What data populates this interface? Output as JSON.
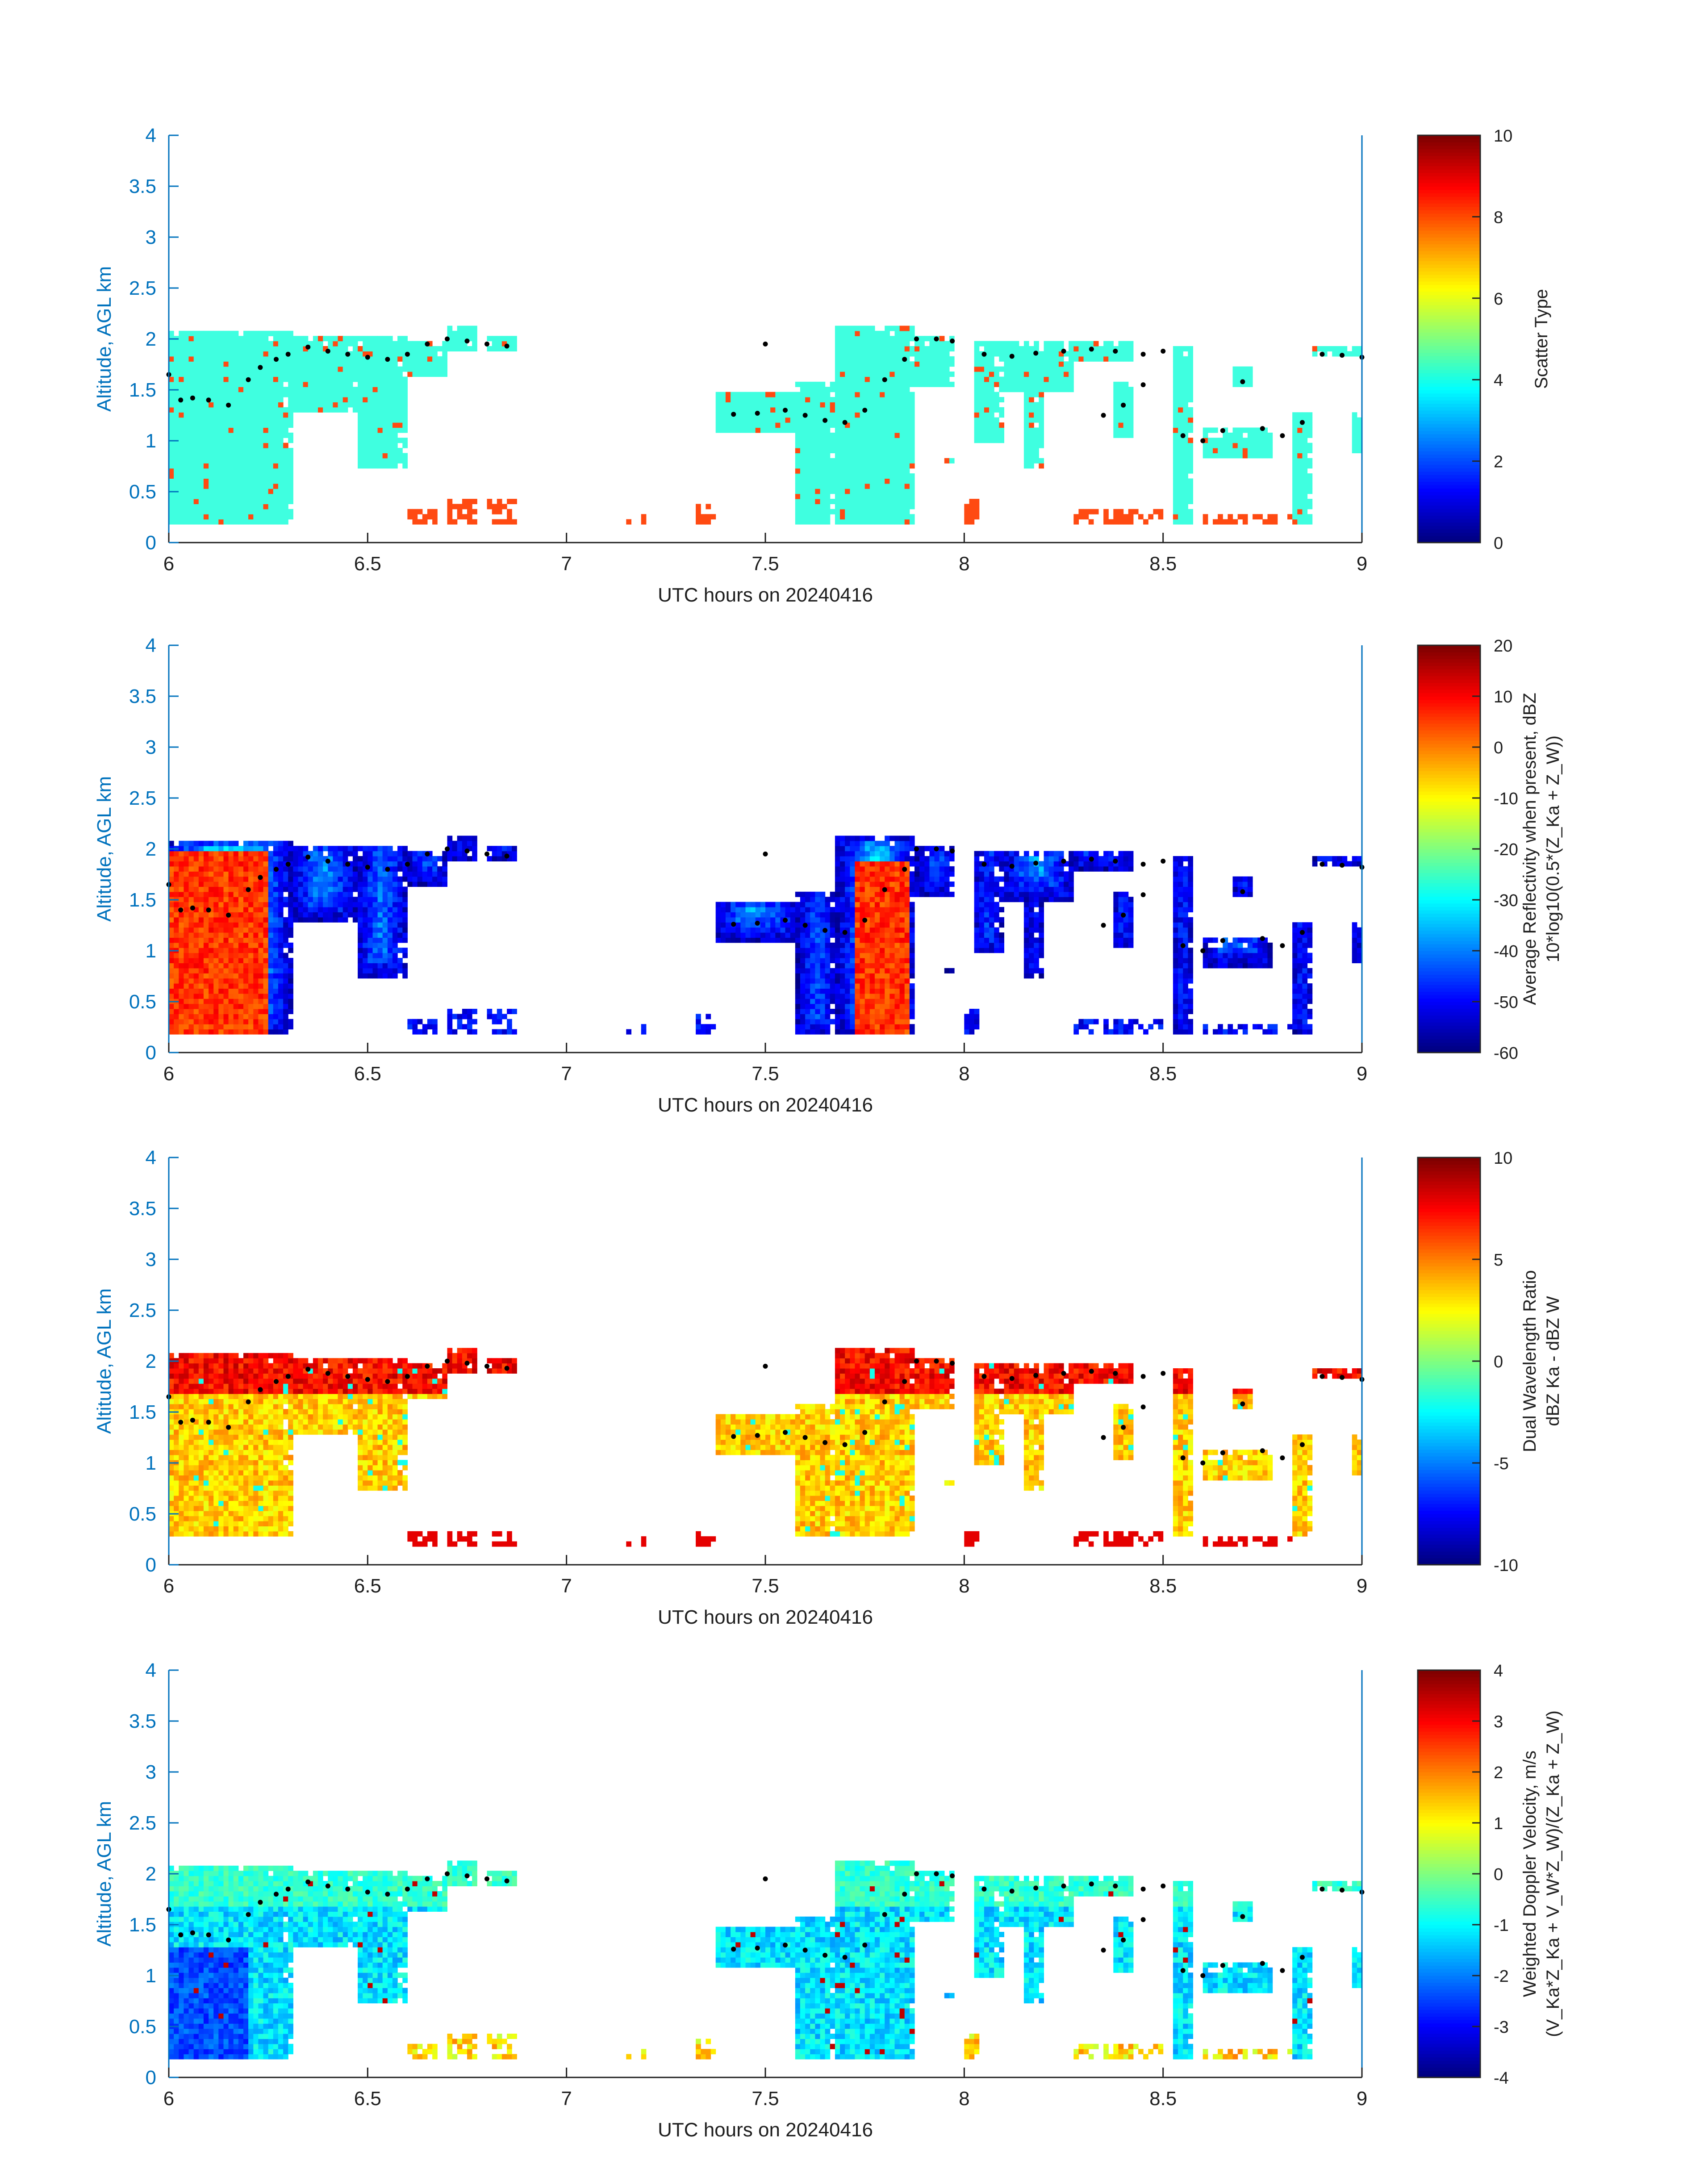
{
  "colors": {
    "axis": "#0072bd",
    "text": "#1f1f1f",
    "scatter_cyan": "#3fffe0",
    "scatter_orange": "#ff4a12",
    "marker": "#000000"
  },
  "chart_data": [
    {
      "type": "heatmap",
      "xlabel": "UTC hours on 20240416",
      "ylabel": "Altitude, AGL km",
      "xlim": [
        6,
        9
      ],
      "ylim": [
        0,
        4
      ],
      "xticks": [
        "6",
        "6.5",
        "7",
        "7.5",
        "8",
        "8.5",
        "9"
      ],
      "yticks": [
        "0",
        "0.5",
        "1",
        "1.5",
        "2",
        "2.5",
        "3",
        "3.5",
        "4"
      ],
      "colorbar": {
        "label_lines": [
          "Scatter Type"
        ],
        "range": [
          0,
          10
        ],
        "ticks": [
          "0",
          "2",
          "4",
          "6",
          "8",
          "10"
        ],
        "colormap": "jet"
      },
      "field": "scatter"
    },
    {
      "type": "heatmap",
      "xlabel": "UTC hours on 20240416",
      "ylabel": "Altitude, AGL km",
      "xlim": [
        6,
        9
      ],
      "ylim": [
        0,
        4
      ],
      "xticks": [
        "6",
        "6.5",
        "7",
        "7.5",
        "8",
        "8.5",
        "9"
      ],
      "yticks": [
        "0",
        "0.5",
        "1",
        "1.5",
        "2",
        "2.5",
        "3",
        "3.5",
        "4"
      ],
      "colorbar": {
        "label_lines": [
          "Average Reflectivity when present, dBZ",
          "10*log10(0.5*(Z_Ka + Z_W))"
        ],
        "range": [
          -60,
          20
        ],
        "ticks": [
          "-60",
          "-50",
          "-40",
          "-30",
          "-20",
          "-10",
          "0",
          "10",
          "20"
        ],
        "colormap": "jet"
      },
      "field": "reflectivity"
    },
    {
      "type": "heatmap",
      "xlabel": "UTC hours on 20240416",
      "ylabel": "Altitude, AGL km",
      "xlim": [
        6,
        9
      ],
      "ylim": [
        0,
        4
      ],
      "xticks": [
        "6",
        "6.5",
        "7",
        "7.5",
        "8",
        "8.5",
        "9"
      ],
      "yticks": [
        "0",
        "0.5",
        "1",
        "1.5",
        "2",
        "2.5",
        "3",
        "3.5",
        "4"
      ],
      "colorbar": {
        "label_lines": [
          "Dual Wavelength Ratio",
          "dBZ Ka - dBZ W"
        ],
        "range": [
          -10,
          10
        ],
        "ticks": [
          "-10",
          "-5",
          "0",
          "5",
          "10"
        ],
        "colormap": "jet"
      },
      "field": "dwr"
    },
    {
      "type": "heatmap",
      "xlabel": "UTC hours on 20240416",
      "ylabel": "Altitude, AGL km",
      "xlim": [
        6,
        9
      ],
      "ylim": [
        0,
        4
      ],
      "xticks": [
        "6",
        "6.5",
        "7",
        "7.5",
        "8",
        "8.5",
        "9"
      ],
      "yticks": [
        "0",
        "0.5",
        "1",
        "1.5",
        "2",
        "2.5",
        "3",
        "3.5",
        "4"
      ],
      "colorbar": {
        "label_lines": [
          "Weighted Doppler Velocity, m/s",
          "(V_Ka*Z_Ka + V_W*Z_W)/(Z_Ka + Z_W)"
        ],
        "range": [
          -4,
          4
        ],
        "ticks": [
          "-4",
          "-3",
          "-2",
          "-1",
          "0",
          "1",
          "2",
          "3",
          "4"
        ],
        "colormap": "jet"
      },
      "field": "velocity"
    }
  ],
  "cloud_regions": [
    {
      "x0": 6.0,
      "x1": 6.31,
      "y0": 0.18,
      "y1": 2.1
    },
    {
      "x0": 6.31,
      "x1": 6.47,
      "y0": 1.3,
      "y1": 2.05
    },
    {
      "x0": 6.47,
      "x1": 6.6,
      "y0": 0.75,
      "y1": 2.05
    },
    {
      "x0": 6.6,
      "x1": 6.7,
      "y0": 1.65,
      "y1": 2.0
    },
    {
      "x0": 6.7,
      "x1": 6.77,
      "y0": 1.9,
      "y1": 2.12
    },
    {
      "x0": 6.8,
      "x1": 6.87,
      "y0": 1.9,
      "y1": 2.05
    },
    {
      "x0": 7.38,
      "x1": 7.58,
      "y0": 1.1,
      "y1": 1.5
    },
    {
      "x0": 7.58,
      "x1": 7.68,
      "y0": 0.18,
      "y1": 1.6
    },
    {
      "x0": 7.68,
      "x1": 7.88,
      "y0": 0.18,
      "y1": 2.12
    },
    {
      "x0": 7.88,
      "x1": 7.98,
      "y0": 1.55,
      "y1": 2.05
    },
    {
      "x0": 8.02,
      "x1": 8.1,
      "y0": 1.0,
      "y1": 2.0
    },
    {
      "x0": 8.1,
      "x1": 8.27,
      "y0": 1.5,
      "y1": 2.0
    },
    {
      "x0": 8.15,
      "x1": 8.2,
      "y0": 0.75,
      "y1": 1.5
    },
    {
      "x0": 8.27,
      "x1": 8.42,
      "y0": 1.8,
      "y1": 2.0
    },
    {
      "x0": 8.37,
      "x1": 8.43,
      "y0": 1.05,
      "y1": 1.6
    },
    {
      "x0": 8.52,
      "x1": 8.58,
      "y0": 0.2,
      "y1": 1.95
    },
    {
      "x0": 8.6,
      "x1": 8.77,
      "y0": 0.85,
      "y1": 1.15
    },
    {
      "x0": 8.68,
      "x1": 8.73,
      "y0": 1.55,
      "y1": 1.75
    },
    {
      "x0": 8.82,
      "x1": 8.88,
      "y0": 0.2,
      "y1": 1.3
    },
    {
      "x0": 8.88,
      "x1": 9.0,
      "y0": 1.82,
      "y1": 1.95
    },
    {
      "x0": 8.97,
      "x1": 9.0,
      "y0": 0.9,
      "y1": 1.3
    },
    {
      "x0": 7.95,
      "x1": 7.97,
      "y0": 0.8,
      "y1": 0.85
    }
  ],
  "low_echoes": [
    {
      "x0": 6.6,
      "x1": 6.68,
      "y0": 0.2,
      "y1": 0.35
    },
    {
      "x0": 6.7,
      "x1": 6.77,
      "y0": 0.2,
      "y1": 0.45
    },
    {
      "x0": 6.8,
      "x1": 6.87,
      "y0": 0.2,
      "y1": 0.45
    },
    {
      "x0": 7.15,
      "x1": 7.2,
      "y0": 0.2,
      "y1": 0.3
    },
    {
      "x0": 7.32,
      "x1": 7.38,
      "y0": 0.2,
      "y1": 0.4
    },
    {
      "x0": 8.0,
      "x1": 8.04,
      "y0": 0.2,
      "y1": 0.45
    },
    {
      "x0": 8.28,
      "x1": 8.5,
      "y0": 0.2,
      "y1": 0.35
    },
    {
      "x0": 8.6,
      "x1": 8.82,
      "y0": 0.2,
      "y1": 0.3
    }
  ],
  "cloud_top": [
    [
      6.0,
      1.65
    ],
    [
      6.03,
      1.4
    ],
    [
      6.06,
      1.42
    ],
    [
      6.1,
      1.4
    ],
    [
      6.15,
      1.35
    ],
    [
      6.2,
      1.6
    ],
    [
      6.23,
      1.72
    ],
    [
      6.27,
      1.8
    ],
    [
      6.3,
      1.85
    ],
    [
      6.35,
      1.92
    ],
    [
      6.4,
      1.88
    ],
    [
      6.45,
      1.85
    ],
    [
      6.5,
      1.82
    ],
    [
      6.55,
      1.8
    ],
    [
      6.6,
      1.85
    ],
    [
      6.65,
      1.95
    ],
    [
      6.7,
      2.0
    ],
    [
      6.75,
      1.98
    ],
    [
      6.8,
      1.95
    ],
    [
      6.85,
      1.93
    ],
    [
      7.5,
      1.95
    ],
    [
      7.42,
      1.26
    ],
    [
      7.48,
      1.27
    ],
    [
      7.55,
      1.3
    ],
    [
      7.6,
      1.25
    ],
    [
      7.65,
      1.2
    ],
    [
      7.7,
      1.18
    ],
    [
      7.75,
      1.3
    ],
    [
      7.8,
      1.6
    ],
    [
      7.85,
      1.8
    ],
    [
      7.88,
      2.0
    ],
    [
      7.93,
      2.0
    ],
    [
      7.97,
      1.98
    ],
    [
      8.05,
      1.85
    ],
    [
      8.12,
      1.83
    ],
    [
      8.18,
      1.86
    ],
    [
      8.25,
      1.88
    ],
    [
      8.32,
      1.9
    ],
    [
      8.38,
      1.88
    ],
    [
      8.45,
      1.85
    ],
    [
      8.5,
      1.88
    ],
    [
      8.55,
      1.05
    ],
    [
      8.6,
      1.0
    ],
    [
      8.65,
      1.1
    ],
    [
      8.7,
      1.58
    ],
    [
      8.75,
      1.12
    ],
    [
      8.8,
      1.05
    ],
    [
      8.85,
      1.18
    ],
    [
      8.9,
      1.85
    ],
    [
      8.95,
      1.84
    ],
    [
      9.0,
      1.82
    ],
    [
      8.4,
      1.35
    ],
    [
      8.35,
      1.25
    ],
    [
      8.45,
      1.55
    ]
  ]
}
